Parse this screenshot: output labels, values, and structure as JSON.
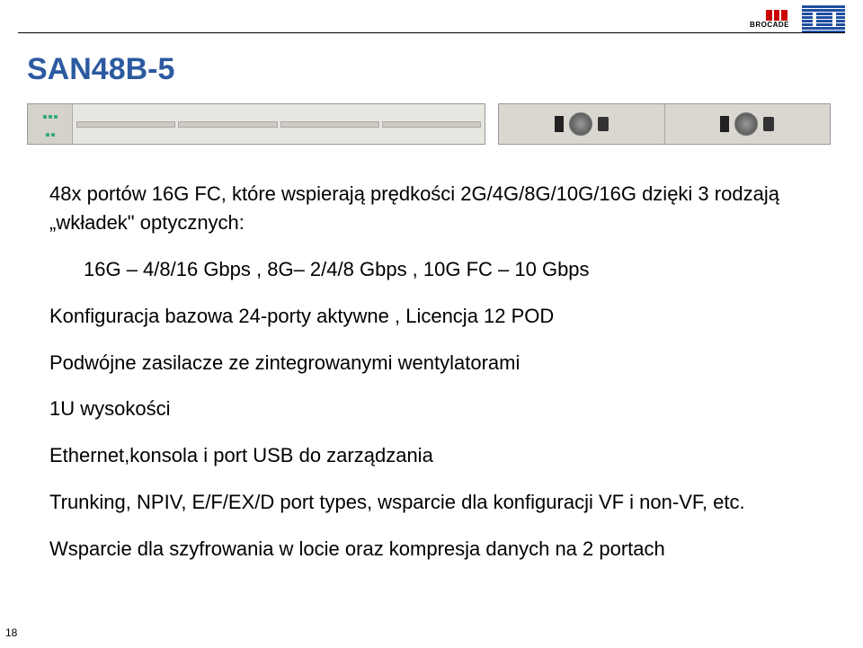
{
  "header": {
    "brocade": {
      "name": "BROCADE",
      "icon_color": "#cc0000"
    },
    "ibm": {
      "stripe_color": "#1f4ea1"
    }
  },
  "title": {
    "text": "SAN48B-5",
    "color": "#2c5aa0"
  },
  "device": {
    "port_groups": 4,
    "ports_per_group_cols": 12,
    "port_rows": 2
  },
  "lines": {
    "l1a": "48x portów 16G FC, które wspierają  prędkości 2G/4G/8G/10G/16G dzięki 3 rodzają",
    "l1b": "„wkładek\" optycznych:",
    "l2": "16G – 4/8/16 Gbps ,  8G– 2/4/8 Gbps ,  10G FC – 10 Gbps",
    "l3": "Konfiguracja bazowa 24-porty aktywne ,  Licencja 12 POD",
    "l4": "Podwójne zasilacze ze zintegrowanymi wentylatorami",
    "l5": "1U wysokości",
    "l6": "Ethernet,konsola i port USB do zarządzania",
    "l7": "Trunking, NPIV, E/F/EX/D port types, wsparcie dla konfiguracji VF i non-VF, etc.",
    "l8": "Wsparcie dla szyfrowania w locie oraz kompresja danych na 2 portach"
  },
  "pagenum": "18",
  "colors": {
    "indent_line_color": "#000000"
  }
}
